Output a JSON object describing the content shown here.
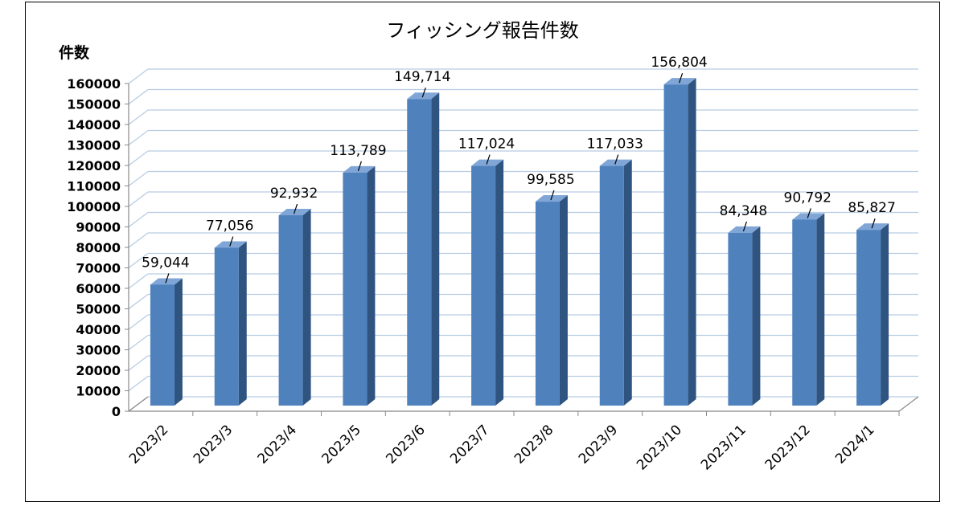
{
  "chart_data": {
    "type": "bar",
    "title": "フィッシング報告件数",
    "ylabel": "件数",
    "xlabel": "",
    "categories": [
      "2023/2",
      "2023/3",
      "2023/4",
      "2023/5",
      "2023/6",
      "2023/7",
      "2023/8",
      "2023/9",
      "2023/10",
      "2023/11",
      "2023/12",
      "2024/1"
    ],
    "values": [
      59044,
      77056,
      92932,
      113789,
      149714,
      117024,
      99585,
      117033,
      156804,
      84348,
      90792,
      85827
    ],
    "data_labels": [
      "59,044",
      "77,056",
      "92,932",
      "113,789",
      "149,714",
      "117,024",
      "99,585",
      "117,033",
      "156,804",
      "84,348",
      "90,792",
      "85,827"
    ],
    "ylim": [
      0,
      160000
    ],
    "yticks": [
      0,
      10000,
      20000,
      30000,
      40000,
      50000,
      60000,
      70000,
      80000,
      90000,
      100000,
      110000,
      120000,
      130000,
      140000,
      150000,
      160000
    ],
    "grid": true,
    "style": "3d-column",
    "colors": {
      "bar_front": "#4f81bd",
      "bar_side": "#2f5480",
      "bar_top": "#7fa6d6",
      "grid": "#b8cce4"
    }
  }
}
